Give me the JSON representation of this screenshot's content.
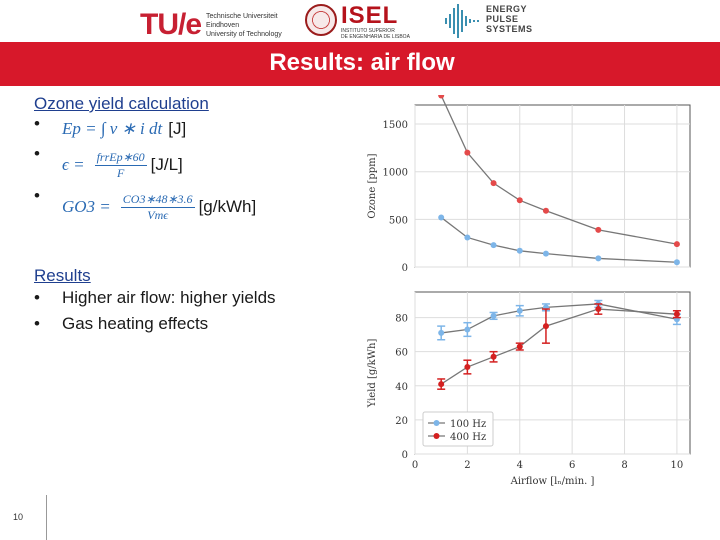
{
  "header": {
    "tue_mark": "TU/e",
    "tue_text": "Technische Universiteit\nEindhoven\nUniversity of Technology",
    "isel_name": "ISEL",
    "isel_sub": "INSTITUTO SUPERIOR\nDE ENGENHARIA DE LISBOA",
    "eps_text": "ENERGY\nPULSE\nSYSTEMS",
    "title": "Results: air flow",
    "accent_color": "#d7182a"
  },
  "left": {
    "section1_title": "Ozone yield calculation",
    "equations": [
      {
        "lhs": "Ep = ∫ v ∗ i dt",
        "num": "",
        "den": "",
        "unit": "[J]"
      },
      {
        "lhs": "ϵ =",
        "num": "frrEp∗60",
        "den": "F",
        "unit": "[J/L]"
      },
      {
        "lhs": "GO3 =",
        "num": "CO3∗48∗3.6",
        "den": "Vmϵ",
        "unit": "[g/kWh]"
      }
    ],
    "section2_title": "Results",
    "results": [
      "Higher air flow: higher yields",
      "Gas heating effects"
    ]
  },
  "page_number": "10",
  "chart_data": [
    {
      "type": "line",
      "ylabel": "Ozone [ppm]",
      "xlabel": "",
      "ylim": [
        0,
        1700
      ],
      "xlim": [
        0,
        10.5
      ],
      "yticks": [
        0,
        500,
        1000,
        1500
      ],
      "xticks": [
        0,
        2,
        4,
        6,
        8,
        10
      ],
      "grid": true,
      "series": [
        {
          "color": "#e44a4a",
          "x": [
            1,
            2,
            3,
            4,
            5,
            7,
            10
          ],
          "values": [
            1800,
            1200,
            880,
            700,
            590,
            390,
            240
          ]
        },
        {
          "color": "#7db5e8",
          "x": [
            1,
            2,
            3,
            4,
            5,
            7,
            10
          ],
          "values": [
            520,
            310,
            230,
            170,
            140,
            90,
            50
          ]
        }
      ]
    },
    {
      "type": "line",
      "ylabel": "Yield [g/kWh]",
      "xlabel": "Airflow [lₙ/min. ]",
      "ylim": [
        0,
        95
      ],
      "xlim": [
        0,
        10.5
      ],
      "yticks": [
        0,
        20,
        40,
        60,
        80
      ],
      "xticks": [
        0,
        2,
        4,
        6,
        8,
        10
      ],
      "grid": true,
      "legend": "bottom-left",
      "series": [
        {
          "name": "100 Hz",
          "color": "#7db5e8",
          "x": [
            1,
            2,
            3,
            4,
            5,
            7,
            10
          ],
          "values": [
            71,
            73,
            81,
            84,
            86,
            88,
            79
          ],
          "err": [
            4,
            4,
            2,
            3,
            2,
            2,
            3
          ]
        },
        {
          "name": "400 Hz",
          "color": "#d42020",
          "x": [
            1,
            2,
            3,
            4,
            5,
            7,
            10
          ],
          "values": [
            41,
            51,
            57,
            63,
            75,
            85,
            82
          ],
          "err": [
            3,
            4,
            3,
            2,
            10,
            3,
            2
          ]
        }
      ]
    }
  ]
}
